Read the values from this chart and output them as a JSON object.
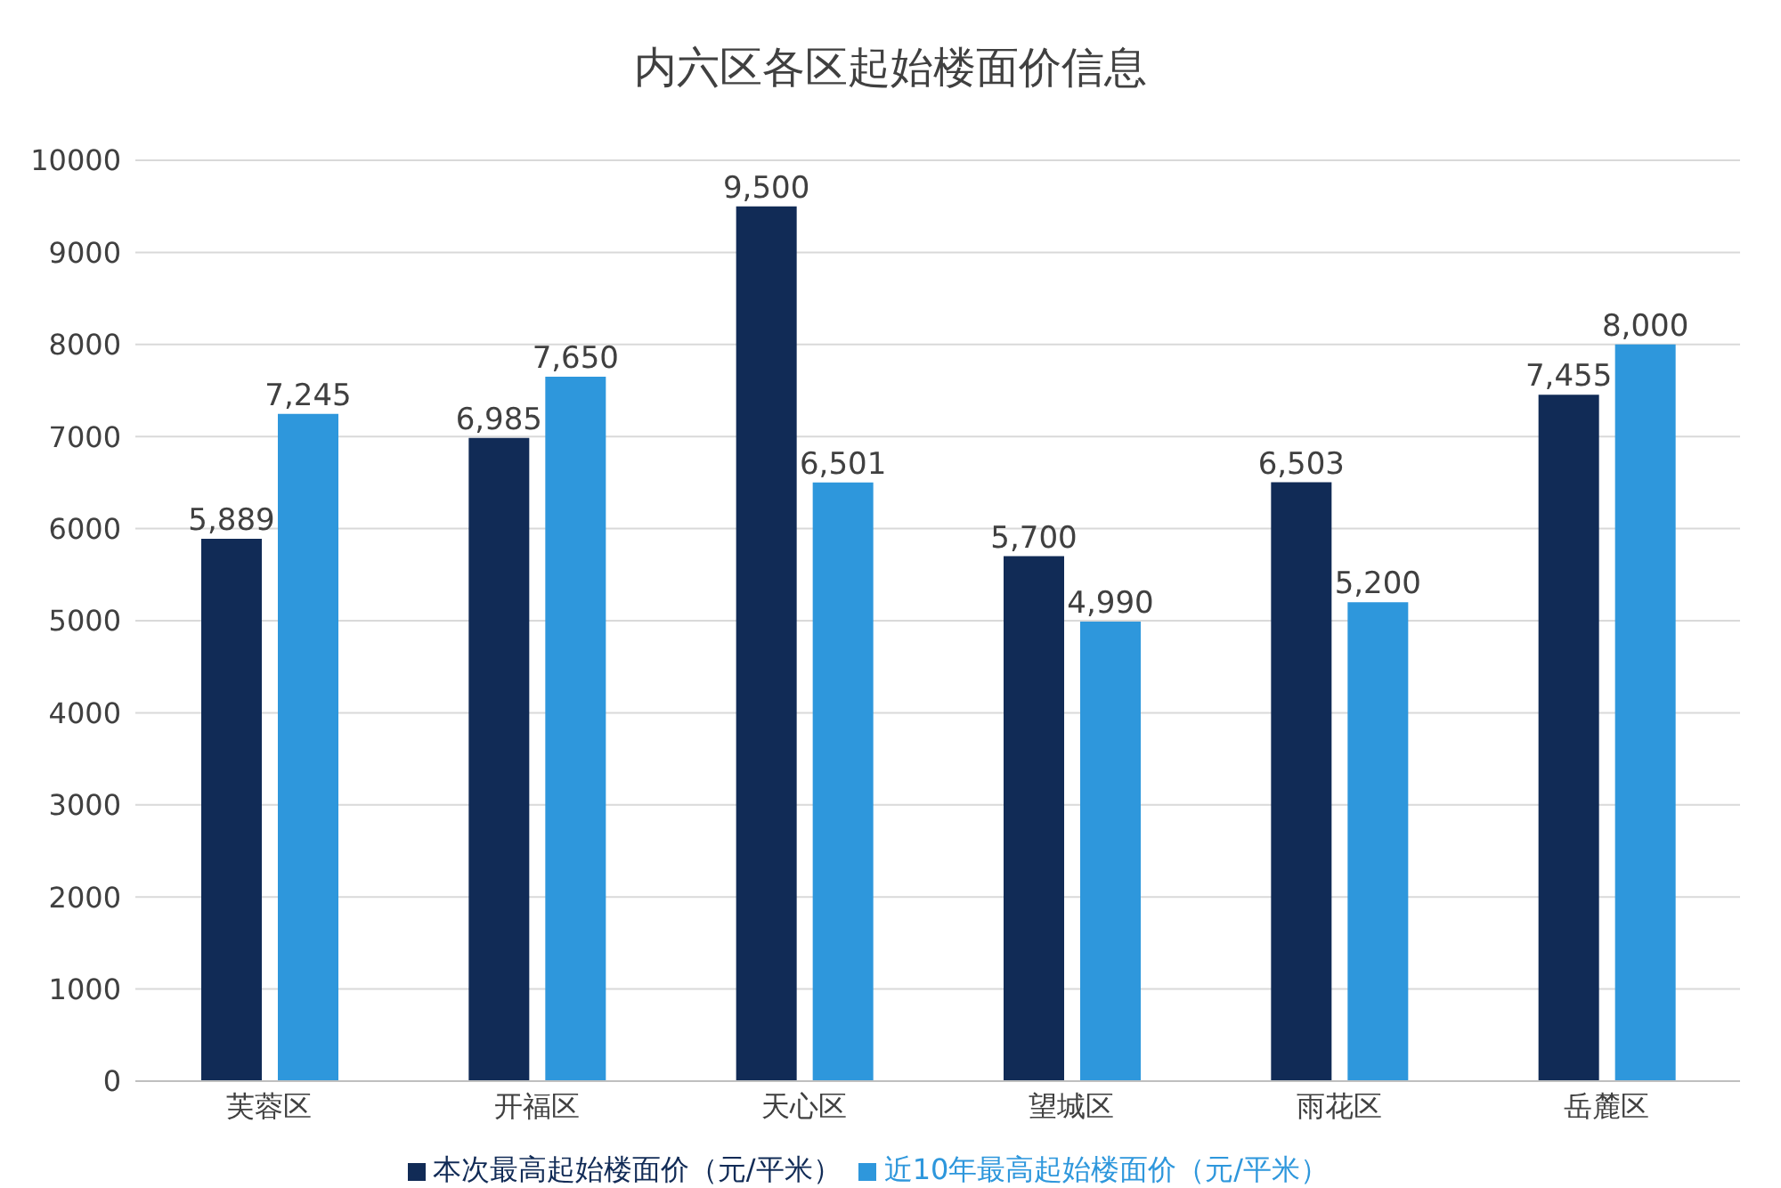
{
  "chart_data": {
    "type": "bar",
    "title": "内六区各区起始楼面价信息",
    "categories": [
      "芙蓉区",
      "开福区",
      "天心区",
      "望城区",
      "雨花区",
      "岳麓区"
    ],
    "series": [
      {
        "name": "本次最高起始楼面价（元/平米）",
        "color": "#112b56",
        "values": [
          5889,
          6985,
          9500,
          5700,
          6503,
          7455
        ],
        "value_labels": [
          "5,889",
          "6,985",
          "9,500",
          "5,700",
          "6,503",
          "7,455"
        ]
      },
      {
        "name": "近10年最高起始楼面价（元/平米）",
        "color": "#2e97dc",
        "values": [
          7245,
          7650,
          6501,
          4990,
          5200,
          8000
        ],
        "value_labels": [
          "7,245",
          "7,650",
          "6,501",
          "4,990",
          "5,200",
          "8,000"
        ]
      }
    ],
    "ylim": [
      0,
      10000
    ],
    "yticks": [
      0,
      1000,
      2000,
      3000,
      4000,
      5000,
      6000,
      7000,
      8000,
      9000,
      10000
    ],
    "grid": "y",
    "legend": "bottom"
  }
}
